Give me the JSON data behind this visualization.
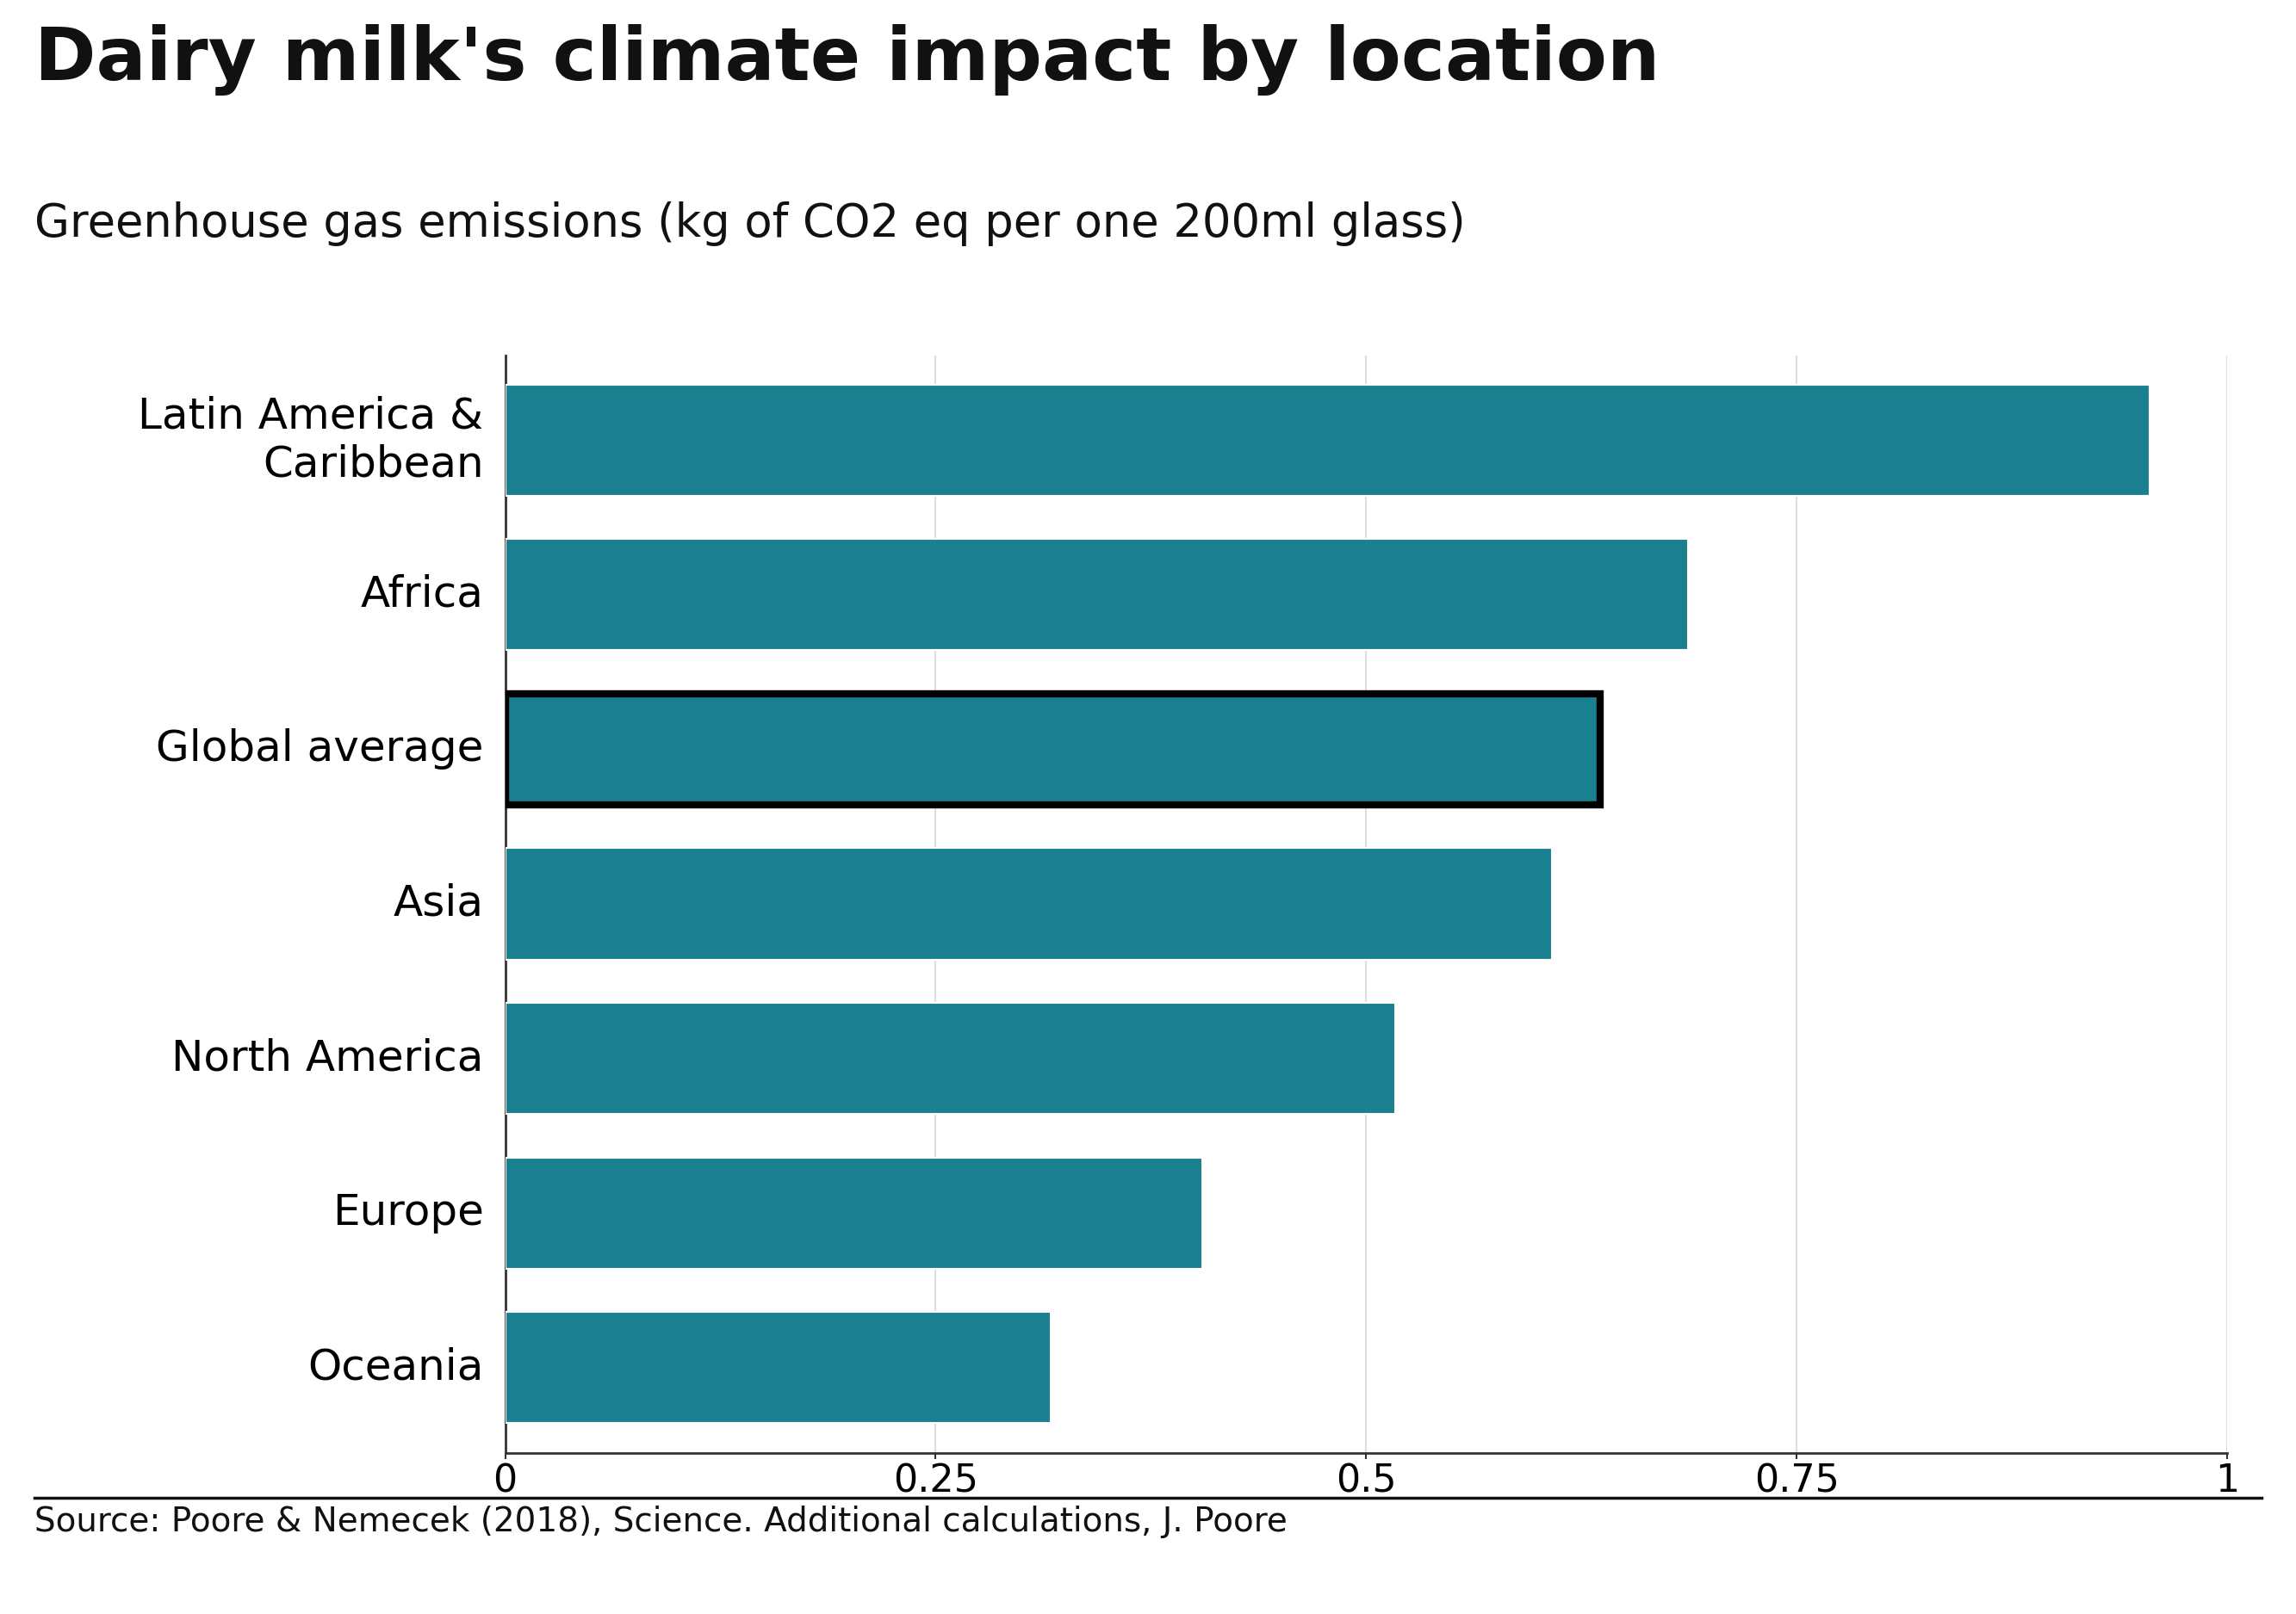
{
  "title": "Dairy milk's climate impact by location",
  "subtitle": "Greenhouse gas emissions (kg of CO2 eq per one 200ml glass)",
  "categories": [
    "Latin America &\nCaribbean",
    "Africa",
    "Global average",
    "Asia",
    "North America",
    "Europe",
    "Oceania"
  ],
  "values": [
    0.955,
    0.687,
    0.636,
    0.608,
    0.517,
    0.405,
    0.317
  ],
  "bar_color": "#1a7f8e",
  "background_color": "#ffffff",
  "source_text": "Source: Poore & Nemecek (2018), Science. Additional calculations, J. Poore",
  "xlim": [
    0,
    1.0
  ],
  "xticks": [
    0,
    0.25,
    0.5,
    0.75,
    1
  ],
  "xtick_labels": [
    "0",
    "0.25",
    "0.5",
    "0.75",
    "1"
  ],
  "global_average_index": 2,
  "title_fontsize": 62,
  "subtitle_fontsize": 38,
  "tick_fontsize": 32,
  "label_fontsize": 36,
  "source_fontsize": 28,
  "bbc_color": "#6e6e6e",
  "bar_height": 0.72,
  "bar_border_lw": 6,
  "grid_color": "#dddddd",
  "spine_color": "#333333"
}
